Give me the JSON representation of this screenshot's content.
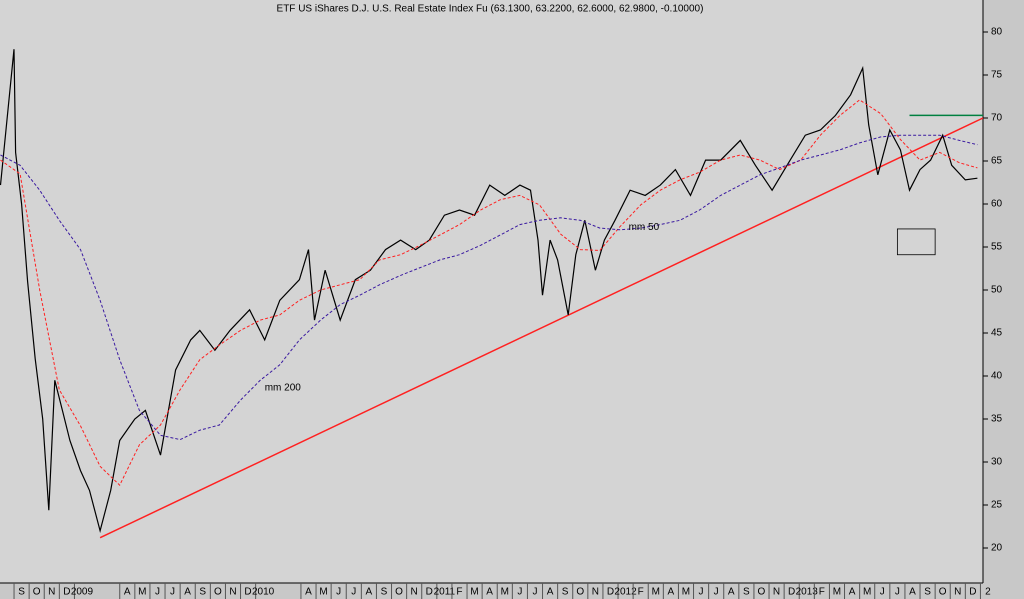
{
  "chart_data": {
    "type": "line",
    "title": "ETF US iShares  D.J. U.S. Real Estate Index Fu (63.1300, 63.2200, 62.6000, 62.9800, -0.10000)",
    "xlim": [
      -0.93,
      64.17
    ],
    "ylim": [
      15.93,
      83.72
    ],
    "yticks": [
      20,
      25,
      30,
      35,
      40,
      45,
      50,
      55,
      60,
      65,
      70,
      75,
      80
    ],
    "xticks": [
      {
        "value": 0,
        "label": "S"
      },
      {
        "value": 1,
        "label": "O"
      },
      {
        "value": 2,
        "label": "N"
      },
      {
        "value": 3,
        "label": "D"
      },
      {
        "value": 4,
        "label": "2009"
      },
      {
        "value": 7,
        "label": "A"
      },
      {
        "value": 8,
        "label": "M"
      },
      {
        "value": 9,
        "label": "J"
      },
      {
        "value": 10,
        "label": "J"
      },
      {
        "value": 11,
        "label": "A"
      },
      {
        "value": 12,
        "label": "S"
      },
      {
        "value": 13,
        "label": "O"
      },
      {
        "value": 14,
        "label": "N"
      },
      {
        "value": 15,
        "label": "D"
      },
      {
        "value": 16,
        "label": "2010"
      },
      {
        "value": 19,
        "label": "A"
      },
      {
        "value": 20,
        "label": "M"
      },
      {
        "value": 21,
        "label": "J"
      },
      {
        "value": 22,
        "label": "J"
      },
      {
        "value": 23,
        "label": "A"
      },
      {
        "value": 24,
        "label": "S"
      },
      {
        "value": 25,
        "label": "O"
      },
      {
        "value": 26,
        "label": "N"
      },
      {
        "value": 27,
        "label": "D"
      },
      {
        "value": 28,
        "label": "2011"
      },
      {
        "value": 29,
        "label": "F"
      },
      {
        "value": 30,
        "label": "M"
      },
      {
        "value": 31,
        "label": "A"
      },
      {
        "value": 32,
        "label": "M"
      },
      {
        "value": 33,
        "label": "J"
      },
      {
        "value": 34,
        "label": "J"
      },
      {
        "value": 35,
        "label": "A"
      },
      {
        "value": 36,
        "label": "S"
      },
      {
        "value": 37,
        "label": "O"
      },
      {
        "value": 38,
        "label": "N"
      },
      {
        "value": 39,
        "label": "D"
      },
      {
        "value": 40,
        "label": "2012"
      },
      {
        "value": 41,
        "label": "F"
      },
      {
        "value": 42,
        "label": "M"
      },
      {
        "value": 43,
        "label": "A"
      },
      {
        "value": 44,
        "label": "M"
      },
      {
        "value": 45,
        "label": "J"
      },
      {
        "value": 46,
        "label": "J"
      },
      {
        "value": 47,
        "label": "A"
      },
      {
        "value": 48,
        "label": "S"
      },
      {
        "value": 49,
        "label": "O"
      },
      {
        "value": 50,
        "label": "N"
      },
      {
        "value": 51,
        "label": "D"
      },
      {
        "value": 52,
        "label": "2013"
      },
      {
        "value": 53,
        "label": "F"
      },
      {
        "value": 54,
        "label": "M"
      },
      {
        "value": 55,
        "label": "A"
      },
      {
        "value": 56,
        "label": "M"
      },
      {
        "value": 57,
        "label": "J"
      },
      {
        "value": 58,
        "label": "J"
      },
      {
        "value": 59,
        "label": "A"
      },
      {
        "value": 60,
        "label": "S"
      },
      {
        "value": 61,
        "label": "O"
      },
      {
        "value": 62,
        "label": "N"
      },
      {
        "value": 63,
        "label": "D"
      },
      {
        "value": 64,
        "label": "2"
      }
    ],
    "series": [
      {
        "color": "#000000",
        "x": [
          -0.9,
          0,
          0.1,
          0.5,
          0.9,
          1.4,
          1.9,
          2.3,
          2.7,
          3.2,
          3.7,
          4.4,
          5.0,
          5.7,
          6.4,
          7.0,
          8.0,
          8.7,
          9.7,
          10.7,
          11.7,
          12.3,
          13.3,
          14.3,
          15.6,
          16.6,
          17.6,
          18.9,
          19.5,
          19.9,
          20.6,
          21.6,
          22.6,
          23.6,
          24.6,
          25.6,
          26.6,
          27.5,
          28.5,
          29.5,
          30.5,
          31.5,
          32.5,
          33.5,
          34.2,
          34.7,
          35.0,
          35.5,
          36.0,
          36.7,
          37.2,
          37.8,
          38.5,
          39.1,
          39.8,
          40.8,
          41.8,
          42.8,
          43.8,
          44.8,
          45.8,
          46.8,
          48.1,
          49.1,
          50.2,
          51.4,
          52.4,
          53.4,
          54.4,
          55.4,
          56.2,
          56.6,
          57.2,
          58.0,
          58.7,
          59.3,
          60.0,
          60.7,
          61.5,
          62.1,
          63.0,
          63.8
        ],
        "values": [
          62.2,
          78,
          66,
          60,
          51,
          42,
          35,
          24.4,
          39.5,
          36,
          32.5,
          29,
          26.7,
          22,
          26.7,
          32.5,
          35,
          36,
          30.8,
          40.7,
          44.2,
          45.3,
          43,
          45.3,
          47.7,
          44.2,
          48.8,
          51.2,
          54.7,
          46.5,
          52.3,
          46.5,
          51.2,
          52.3,
          54.7,
          55.8,
          54.7,
          55.8,
          58.7,
          59.3,
          58.7,
          62.2,
          61,
          62.2,
          61.6,
          55.8,
          49.4,
          55.8,
          53.5,
          47.1,
          54.1,
          58.1,
          52.3,
          55.8,
          58.1,
          61.6,
          61,
          62.2,
          64,
          61,
          65.1,
          65.1,
          67.4,
          64.5,
          61.6,
          65.1,
          68,
          68.6,
          70.3,
          72.7,
          75.8,
          69.2,
          63.4,
          68.6,
          66.3,
          61.6,
          64,
          65.1,
          68,
          64.5,
          62.8,
          63
        ]
      },
      {
        "color": "#ff2020",
        "style": "dashed",
        "x": [
          -0.9,
          0.4,
          1.7,
          3.0,
          4.4,
          5.7,
          7.0,
          8.3,
          9.7,
          11.0,
          12.3,
          13.6,
          15.0,
          16.3,
          17.6,
          18.9,
          20.3,
          21.6,
          22.9,
          24.2,
          25.6,
          26.9,
          28.2,
          29.5,
          30.9,
          32.2,
          33.5,
          34.8,
          36.2,
          37.5,
          38.8,
          40.1,
          41.5,
          42.8,
          44.1,
          45.4,
          46.8,
          48.1,
          49.4,
          50.7,
          52.1,
          53.4,
          54.7,
          56.0,
          57.4,
          58.7,
          60.0,
          61.3,
          62.6,
          63.8
        ],
        "values": [
          65.1,
          63.5,
          50,
          38.4,
          34.2,
          29.5,
          27.3,
          32,
          34.3,
          38.4,
          41.9,
          43.6,
          45.3,
          46.5,
          47.1,
          48.8,
          50,
          50.6,
          51.2,
          53.5,
          54.1,
          55.2,
          56.4,
          57.6,
          59.3,
          60.5,
          61,
          59.9,
          56.5,
          54.7,
          54.6,
          57.3,
          59.9,
          61.6,
          62.8,
          63.7,
          65.1,
          65.7,
          65.1,
          64,
          65.1,
          68,
          70.3,
          72.1,
          70.5,
          67.5,
          65.1,
          66,
          64.8,
          64.2
        ]
      },
      {
        "color": "#3a1aa0",
        "style": "dashed",
        "x": [
          -0.9,
          0.4,
          1.7,
          3.0,
          4.4,
          5.7,
          7.0,
          8.3,
          9.7,
          11.0,
          12.3,
          13.6,
          15.0,
          16.3,
          17.6,
          18.9,
          20.3,
          21.6,
          22.9,
          24.2,
          25.6,
          26.9,
          28.2,
          29.5,
          30.9,
          32.2,
          33.5,
          34.8,
          36.2,
          37.5,
          38.8,
          40.1,
          41.5,
          42.8,
          44.1,
          45.4,
          46.8,
          48.1,
          49.4,
          50.7,
          52.1,
          53.4,
          54.7,
          56.0,
          57.4,
          58.7,
          60.0,
          61.3,
          62.6,
          63.8
        ],
        "values": [
          65.7,
          64.5,
          61.6,
          58.1,
          54.7,
          48.8,
          41.9,
          36,
          33.1,
          32.6,
          33.7,
          34.3,
          37.2,
          39.5,
          41.3,
          44.2,
          46.5,
          48.3,
          49.4,
          50.6,
          51.7,
          52.6,
          53.5,
          54.1,
          55.2,
          56.4,
          57.6,
          58.1,
          58.4,
          58.1,
          57.2,
          57,
          57.2,
          57.6,
          58.1,
          59.3,
          61,
          62.2,
          63.4,
          64.2,
          65.1,
          65.7,
          66.3,
          67.1,
          67.8,
          68,
          68,
          68,
          67.4,
          66.9
        ]
      }
    ],
    "lines": [
      {
        "color": "#ff2020",
        "x": [
          5.7,
          64.17
        ],
        "values": [
          21.2,
          70
        ]
      },
      {
        "color": "#008040",
        "x": [
          59.3,
          64.17
        ],
        "values": [
          70.3,
          70.3
        ]
      }
    ],
    "box": {
      "x": [
        58.5,
        61.0
      ],
      "y": [
        54.1,
        57.1
      ]
    },
    "annotations": [
      {
        "text": "mm 200",
        "x": 16.6,
        "y": 38.6,
        "color": "#3a1aa0"
      },
      {
        "text": "mm 50",
        "x": 40.7,
        "y": 57.3,
        "color": "#ff2020"
      }
    ]
  }
}
